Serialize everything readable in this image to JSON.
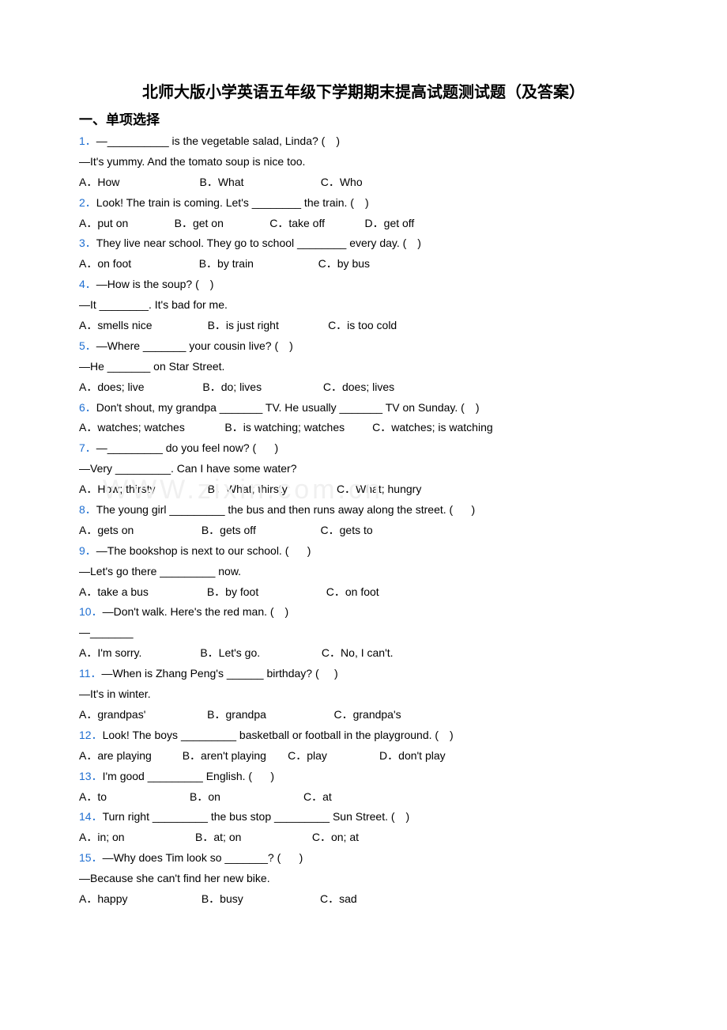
{
  "title": "北师大版小学英语五年级下学期期末提高试题测试题（及答案）",
  "sectionHeader": "一、单项选择",
  "watermark": "WWW.zixin.com.cn",
  "colors": {
    "qnum": "#1f6fd1",
    "text": "#000000",
    "watermark": "#f0f0f0",
    "background": "#ffffff"
  },
  "questions": [
    {
      "num": "1．",
      "stemLines": [
        "—__________ is the vegetable salad, Linda? (　)",
        "—It's yummy. And the tomato soup is nice too."
      ],
      "options": [
        "A．How",
        "B．What",
        "C．Who"
      ],
      "optCols": 3
    },
    {
      "num": "2．",
      "stemLines": [
        "Look! The train is coming. Let's ________ the train. (　)"
      ],
      "options": [
        "A．put on",
        "B．get on",
        "C．take off",
        "D．get off"
      ],
      "optCols": 4
    },
    {
      "num": "3．",
      "stemLines": [
        "They live near school. They go to school ________ every day. (　)"
      ],
      "options": [
        "A．on foot",
        "B．by train",
        "C．by bus"
      ],
      "optCols": 3
    },
    {
      "num": "4．",
      "stemLines": [
        "—How is the soup? (　)",
        "—It ________. It's bad for me."
      ],
      "options": [
        "A．smells nice",
        "B．is just right",
        "C．is too cold"
      ],
      "optCols": 3
    },
    {
      "num": "5．",
      "stemLines": [
        "—Where _______ your cousin live? (　)",
        "—He _______ on Star Street."
      ],
      "options": [
        "A．does; live",
        "B．do; lives",
        "C．does; lives"
      ],
      "optCols": 3
    },
    {
      "num": "6．",
      "stemLines": [
        "Don't shout, my grandpa _______ TV. He usually _______ TV on Sunday. (　)"
      ],
      "options": [
        "A．watches; watches",
        "B．is watching; watches",
        "C．watches; is watching"
      ],
      "optCols": 3
    },
    {
      "num": "7．",
      "stemLines": [
        "—_________ do you feel now? (      )",
        "—Very _________. Can I have some water?"
      ],
      "options": [
        "A．How; thirsty",
        "B．What; thirsty",
        "C．What; hungry"
      ],
      "optCols": 3,
      "watermark": true
    },
    {
      "num": "8．",
      "stemLines": [
        "The young girl _________ the bus and then runs away along the street. (      )"
      ],
      "options": [
        "A．gets on",
        "B．gets off",
        "C．gets to"
      ],
      "optCols": 3
    },
    {
      "num": "9．",
      "stemLines": [
        "—The bookshop is next to our school. (      )",
        "—Let's go there _________ now."
      ],
      "options": [
        "A．take a bus",
        "B．by foot",
        "C．on foot"
      ],
      "optCols": 3
    },
    {
      "num": "10．",
      "stemLines": [
        "—Don't walk. Here's the red man. (　)",
        "—_______"
      ],
      "options": [
        "A．I'm sorry.",
        "B．Let's go.",
        "C．No, I can't."
      ],
      "optCols": 3
    },
    {
      "num": "11．",
      "stemLines": [
        "—When is Zhang Peng's ______ birthday? (     )",
        "—It's in winter."
      ],
      "options": [
        "A．grandpas'",
        "B．grandpa",
        "C．grandpa's"
      ],
      "optCols": 3
    },
    {
      "num": "12．",
      "stemLines": [
        "Look! The boys _________ basketball or football in the playground. (　)"
      ],
      "options": [
        "A．are playing",
        "B．aren't playing",
        "C．play",
        "D．don't play"
      ],
      "optCols": 4
    },
    {
      "num": "13．",
      "stemLines": [
        "I'm good _________ English. (      )"
      ],
      "options": [
        "A．to",
        "B．on",
        "C．at"
      ],
      "optCols": 3
    },
    {
      "num": "14．",
      "stemLines": [
        "Turn right _________ the bus stop _________ Sun Street. (　)"
      ],
      "options": [
        "A．in; on",
        "B．at; on",
        "C．on; at"
      ],
      "optCols": 3
    },
    {
      "num": "15．",
      "stemLines": [
        "—Why does Tim look so _______? (      )",
        "—Because she can't find her new bike."
      ],
      "options": [
        "A．happy",
        "B．busy",
        "C．sad"
      ],
      "optCols": 3
    }
  ]
}
